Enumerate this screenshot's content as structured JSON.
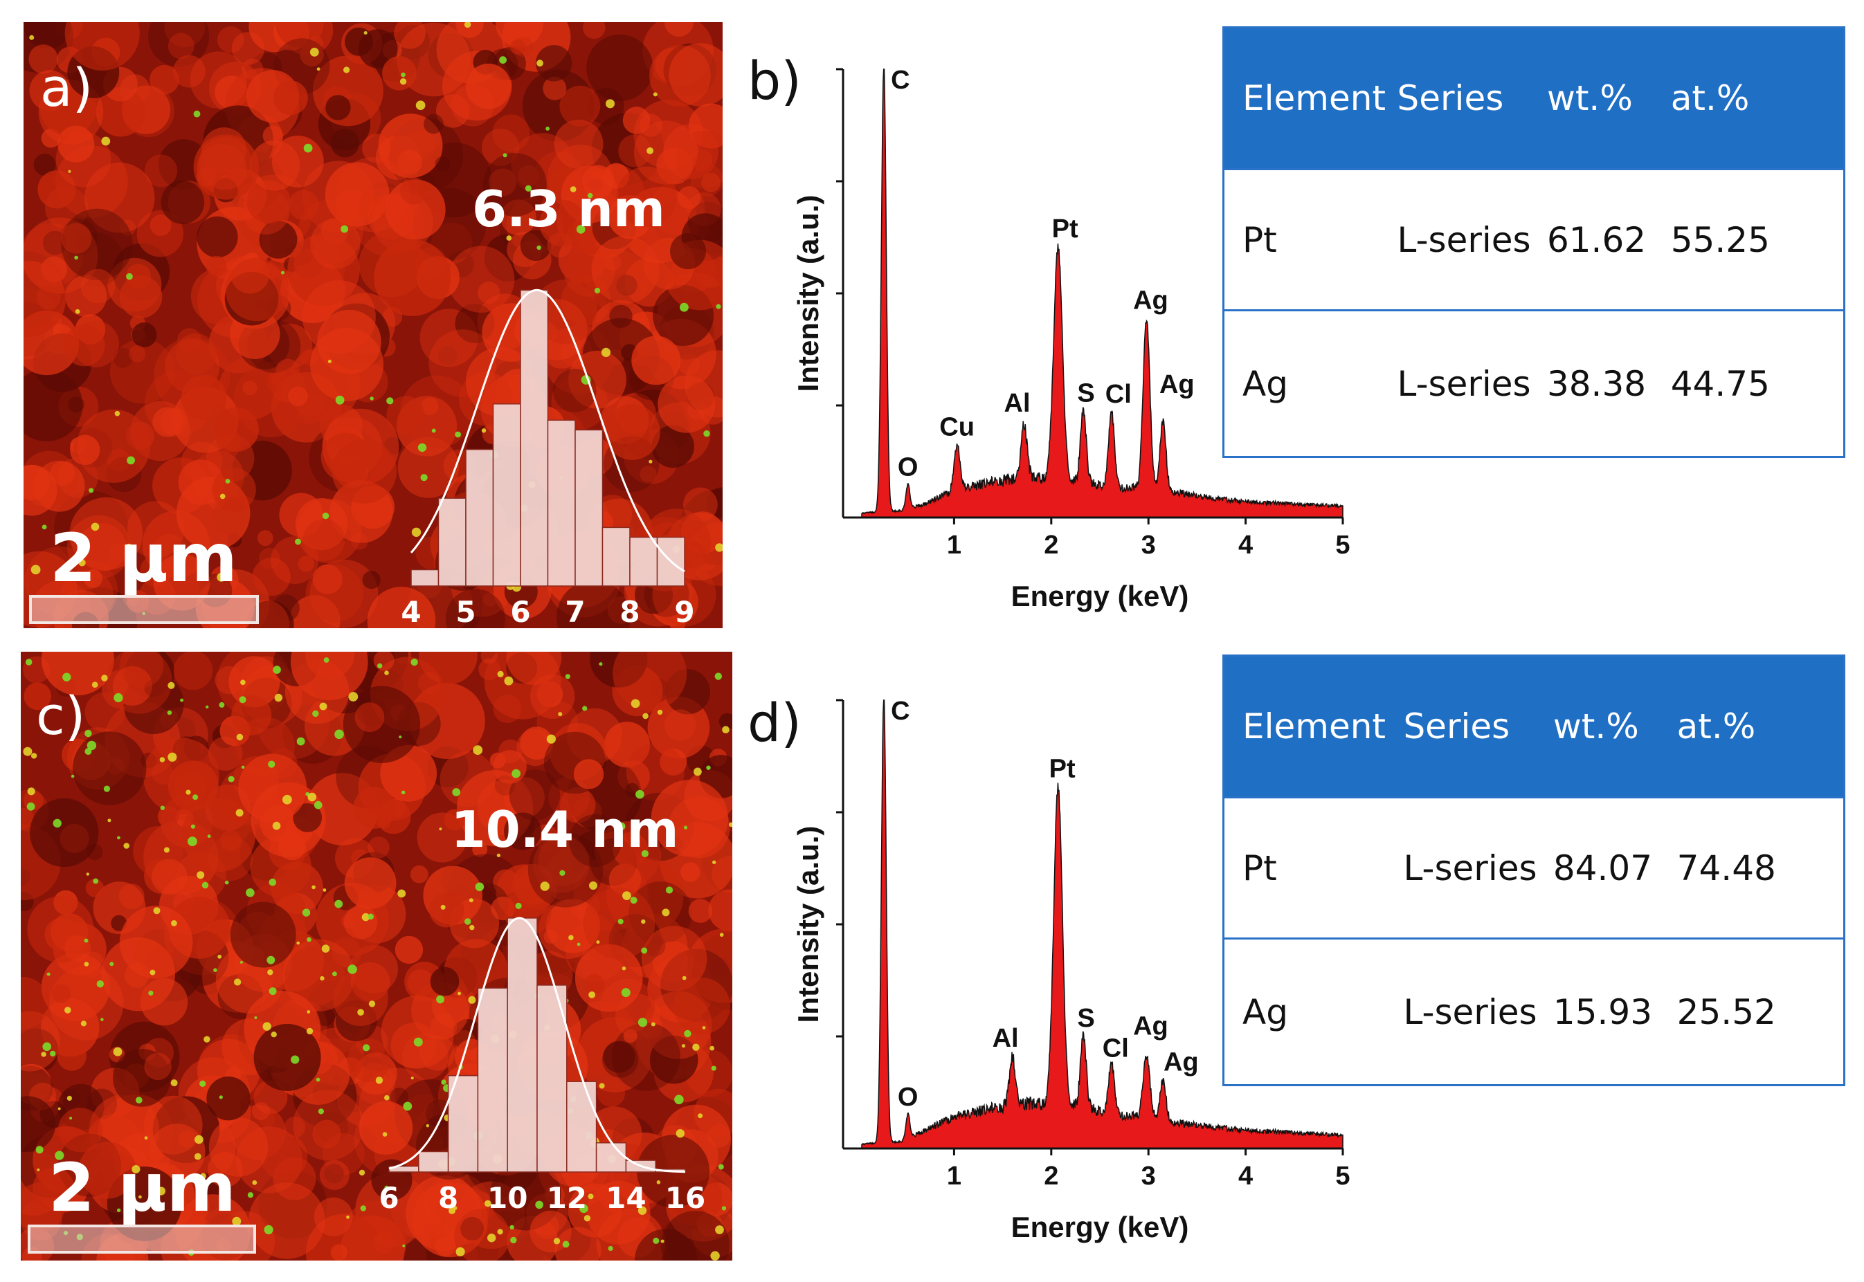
{
  "colors": {
    "map_bg": "#8a1408",
    "map_red": "#e23312",
    "map_dark": "#5a0a04",
    "spectrum_fill": "#e8191a",
    "table_header": "#1f6fc5",
    "table_border": "#2a72c7",
    "hist_bar": "#f2d4d0"
  },
  "panels": {
    "a": {
      "label": "a)",
      "scale_bar": "2 µm",
      "hist_label": "6.3 nm",
      "chart_ref": "histogram-a"
    },
    "b": {
      "label": "b)"
    },
    "c": {
      "label": "c)",
      "scale_bar": "2 µm",
      "hist_label": "10.4 nm",
      "chart_ref": "histogram-c"
    },
    "d": {
      "label": "d)"
    }
  },
  "tables": [
    {
      "headers": [
        "Element",
        "Series",
        "wt.%",
        "at.%"
      ],
      "rows": [
        [
          "Pt",
          "L-series",
          "61.62",
          "55.25"
        ],
        [
          "Ag",
          "L-series",
          "38.38",
          "44.75"
        ]
      ]
    },
    {
      "headers": [
        "Element",
        "Series",
        "wt.%",
        "at.%"
      ],
      "rows": [
        [
          "Pt",
          "L-series",
          "84.07",
          "74.48"
        ],
        [
          "Ag",
          "L-series",
          "15.93",
          "25.52"
        ]
      ]
    }
  ],
  "chart_data": [
    {
      "id": "histogram-a",
      "type": "bar",
      "title": "6.3 nm",
      "xlabel": "",
      "ylabel": "",
      "xlim": [
        4,
        9
      ],
      "tick_labels": [
        "4",
        "5",
        "6",
        "7",
        "8",
        "9"
      ],
      "bins": [
        4.0,
        4.5,
        5.0,
        5.5,
        6.0,
        6.5,
        7.0,
        7.5,
        8.0,
        8.5
      ],
      "bin_width": 0.5,
      "values": [
        5,
        27,
        42,
        56,
        91,
        51,
        48,
        18,
        15,
        15
      ],
      "ylim": [
        0,
        100
      ],
      "fit_curve": {
        "type": "gaussian",
        "mean": 6.3,
        "sigma": 1.1,
        "peak": 91
      }
    },
    {
      "id": "histogram-c",
      "type": "bar",
      "title": "10.4 nm",
      "xlabel": "",
      "ylabel": "",
      "xlim": [
        6,
        16
      ],
      "tick_labels": [
        "6",
        "8",
        "10",
        "12",
        "14",
        "16"
      ],
      "bins": [
        6,
        7,
        8,
        9,
        10,
        11,
        12,
        13,
        14,
        15
      ],
      "bin_width": 1,
      "values": [
        2,
        7,
        33,
        63,
        87,
        64,
        31,
        10,
        4,
        1
      ],
      "ylim": [
        0,
        100
      ],
      "fit_curve": {
        "type": "gaussian",
        "mean": 10.4,
        "sigma": 1.5,
        "peak": 87
      }
    },
    {
      "id": "spectrum-b",
      "type": "area",
      "xlabel": "Energy (keV)",
      "ylabel": "Intensity (a.u.)",
      "xlim": [
        0,
        5
      ],
      "ylim": [
        0,
        100
      ],
      "x_ticks": [
        1,
        2,
        3,
        4,
        5
      ],
      "baseline": [
        [
          0.05,
          1
        ],
        [
          0.45,
          1.5
        ],
        [
          0.7,
          3
        ],
        [
          1.0,
          6
        ],
        [
          1.4,
          8
        ],
        [
          1.8,
          9
        ],
        [
          2.2,
          8
        ],
        [
          2.6,
          7
        ],
        [
          3.2,
          6
        ],
        [
          3.6,
          4.5
        ],
        [
          4.0,
          3.5
        ],
        [
          4.5,
          3
        ],
        [
          5.0,
          2.6
        ]
      ],
      "peaks": [
        {
          "label": "C",
          "energy": 0.277,
          "height": 100,
          "width": 0.025
        },
        {
          "label": "O",
          "energy": 0.525,
          "height": 5.5,
          "width": 0.02
        },
        {
          "label": "Cu",
          "energy": 1.03,
          "height": 10,
          "width": 0.03
        },
        {
          "label": "Al",
          "energy": 1.72,
          "height": 12,
          "width": 0.03
        },
        {
          "label": "Pt",
          "energy": 2.07,
          "height": 52,
          "width": 0.045
        },
        {
          "label": "S",
          "energy": 2.33,
          "height": 16,
          "width": 0.03
        },
        {
          "label": "Cl",
          "energy": 2.62,
          "height": 16.5,
          "width": 0.03
        },
        {
          "label": "Ag",
          "energy": 2.98,
          "height": 38,
          "width": 0.035
        },
        {
          "label": "Ag",
          "energy": 3.15,
          "height": 15.5,
          "width": 0.03
        }
      ]
    },
    {
      "id": "spectrum-d",
      "type": "area",
      "xlabel": "Energy (keV)",
      "ylabel": "Intensity (a.u.)",
      "xlim": [
        0,
        5
      ],
      "ylim": [
        0,
        100
      ],
      "x_ticks": [
        1,
        2,
        3,
        4,
        5
      ],
      "baseline": [
        [
          0.05,
          1
        ],
        [
          0.45,
          1.5
        ],
        [
          0.7,
          4
        ],
        [
          1.0,
          7
        ],
        [
          1.4,
          9
        ],
        [
          1.8,
          10
        ],
        [
          2.2,
          9.5
        ],
        [
          2.6,
          8
        ],
        [
          3.2,
          6
        ],
        [
          3.6,
          5
        ],
        [
          4.0,
          4
        ],
        [
          4.5,
          3.5
        ],
        [
          5.0,
          3
        ]
      ],
      "peaks": [
        {
          "label": "C",
          "energy": 0.277,
          "height": 100,
          "width": 0.025
        },
        {
          "label": "O",
          "energy": 0.525,
          "height": 5.5,
          "width": 0.02
        },
        {
          "label": "Al",
          "energy": 1.6,
          "height": 11,
          "width": 0.03
        },
        {
          "label": "Pt",
          "energy": 2.07,
          "height": 71,
          "width": 0.045
        },
        {
          "label": "S",
          "energy": 2.33,
          "height": 16,
          "width": 0.03
        },
        {
          "label": "Cl",
          "energy": 2.62,
          "height": 11,
          "width": 0.03
        },
        {
          "label": "Ag",
          "energy": 2.98,
          "height": 14,
          "width": 0.035
        },
        {
          "label": "Ag",
          "energy": 3.15,
          "height": 9,
          "width": 0.03
        }
      ]
    }
  ]
}
